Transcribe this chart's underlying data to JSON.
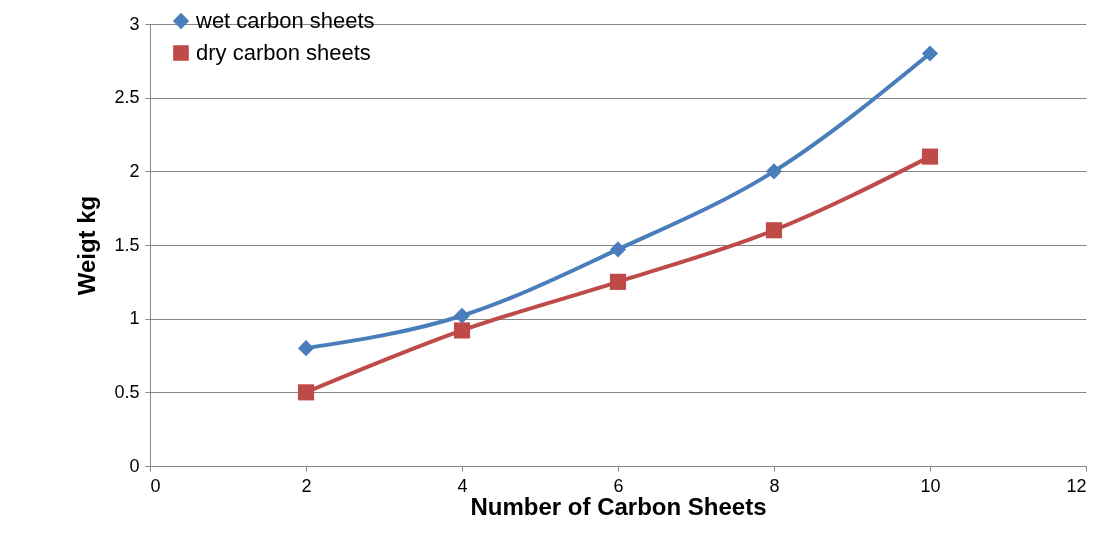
{
  "chart_data": {
    "type": "line",
    "xlabel": "Number of Carbon Sheets",
    "ylabel": "Weigt kg",
    "x": [
      2,
      4,
      6,
      8,
      10
    ],
    "series": [
      {
        "name": "wet carbon sheets",
        "color": "#4a7ebb",
        "values": [
          0.8,
          1.02,
          1.47,
          2.0,
          2.8
        ],
        "marker": "diamond"
      },
      {
        "name": "dry carbon sheets",
        "color": "#be4b48",
        "values": [
          0.5,
          0.92,
          1.25,
          1.6,
          2.1
        ],
        "marker": "square"
      }
    ],
    "xlim": [
      0,
      12
    ],
    "xticks": [
      0,
      2,
      4,
      6,
      8,
      10,
      12
    ],
    "ylim": [
      0,
      3
    ],
    "yticks": [
      0,
      0.5,
      1,
      1.5,
      2,
      2.5,
      3
    ],
    "grid": "y",
    "legend": "top left",
    "line_style": "solid"
  }
}
